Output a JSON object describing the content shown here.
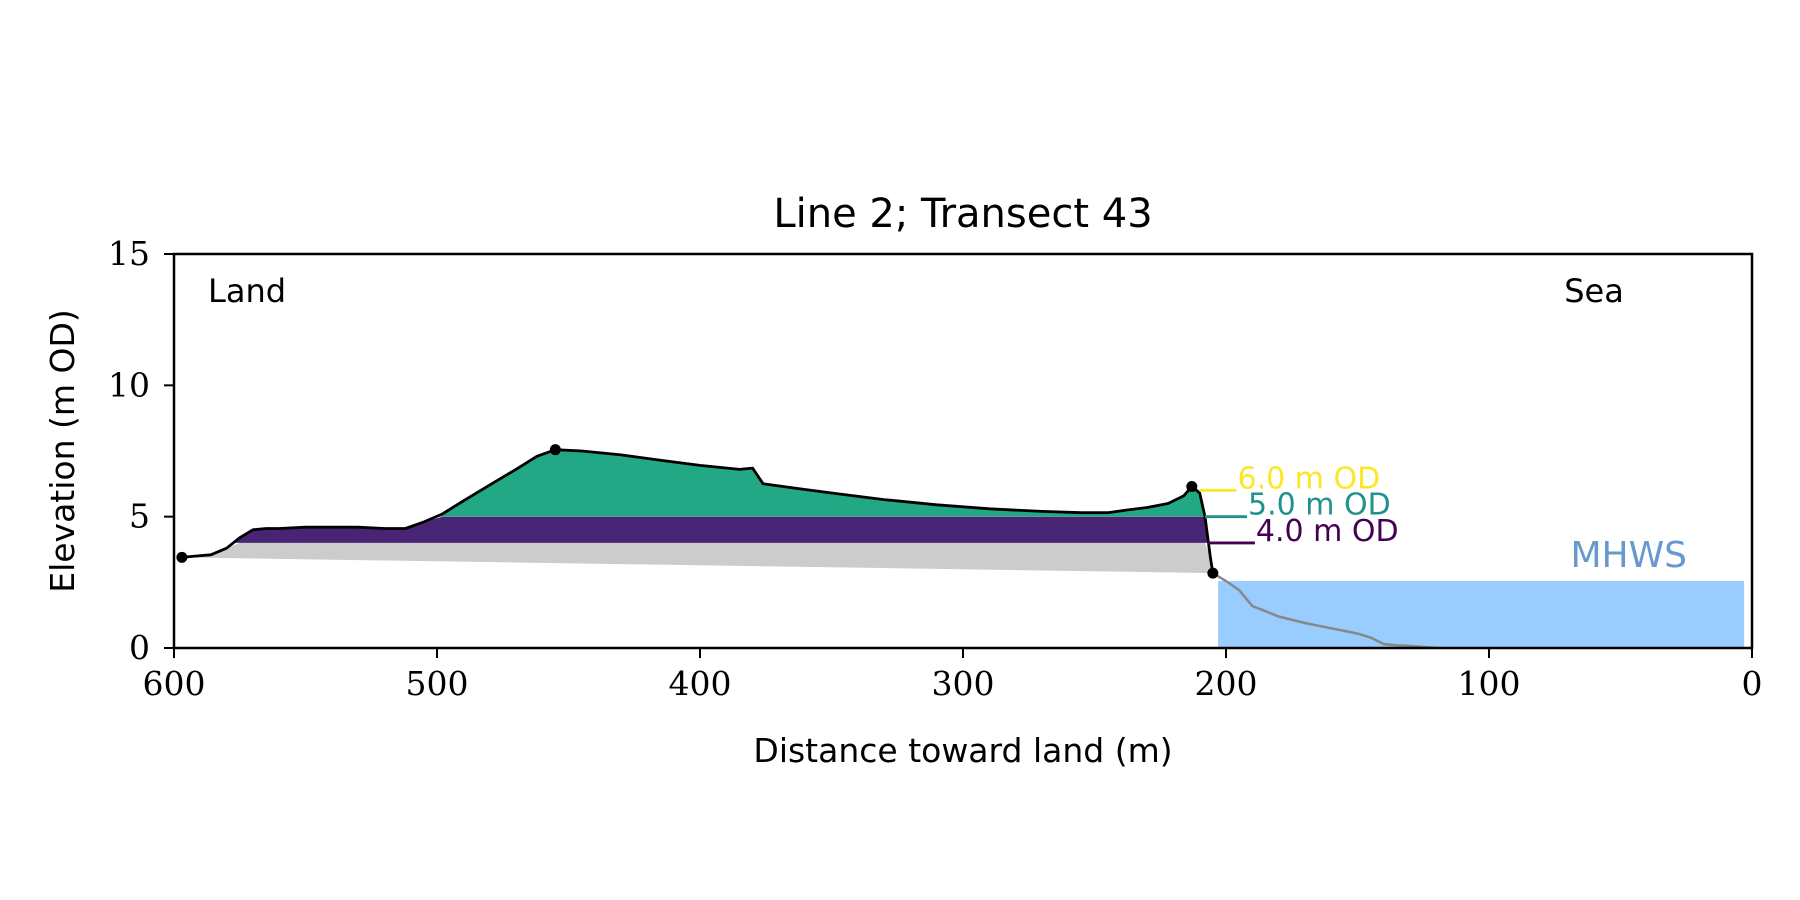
{
  "chart_data": {
    "type": "area",
    "title": "Line 2; Transect 43",
    "xlabel": "Distance toward land (m)",
    "ylabel": "Elevation (m OD)",
    "xlim": [
      600,
      0
    ],
    "ylim": [
      0,
      15
    ],
    "x_ticks": [
      600,
      500,
      400,
      300,
      200,
      100,
      0
    ],
    "y_ticks": [
      0,
      5,
      10,
      15
    ],
    "corner_labels": {
      "left": "Land",
      "right": "Sea"
    },
    "colors": {
      "dune_above_5": "#22a884",
      "band_4_to_5": "#482475",
      "base_wedge": "#cccccc",
      "sea": "#99ccff",
      "mhws_text": "#6699cc",
      "seabed_line": "#888888",
      "line_6": "#fde725",
      "line_5": "#21918c",
      "line_4": "#440154",
      "profile": "#000000"
    },
    "series": [
      {
        "name": "profile",
        "points": [
          [
            597,
            3.45
          ],
          [
            592,
            3.5
          ],
          [
            586,
            3.55
          ],
          [
            580,
            3.8
          ],
          [
            575,
            4.2
          ],
          [
            570,
            4.5
          ],
          [
            565,
            4.55
          ],
          [
            560,
            4.55
          ],
          [
            550,
            4.6
          ],
          [
            540,
            4.6
          ],
          [
            530,
            4.6
          ],
          [
            520,
            4.55
          ],
          [
            512,
            4.55
          ],
          [
            505,
            4.8
          ],
          [
            498,
            5.1
          ],
          [
            490,
            5.6
          ],
          [
            480,
            6.2
          ],
          [
            470,
            6.8
          ],
          [
            462,
            7.3
          ],
          [
            455,
            7.55
          ],
          [
            445,
            7.5
          ],
          [
            430,
            7.35
          ],
          [
            415,
            7.15
          ],
          [
            400,
            6.95
          ],
          [
            385,
            6.8
          ],
          [
            380,
            6.85
          ],
          [
            376,
            6.25
          ],
          [
            365,
            6.1
          ],
          [
            350,
            5.9
          ],
          [
            330,
            5.65
          ],
          [
            310,
            5.45
          ],
          [
            290,
            5.3
          ],
          [
            270,
            5.2
          ],
          [
            255,
            5.15
          ],
          [
            245,
            5.15
          ],
          [
            238,
            5.25
          ],
          [
            230,
            5.35
          ],
          [
            222,
            5.5
          ],
          [
            216,
            5.8
          ],
          [
            213,
            6.15
          ],
          [
            210,
            5.9
          ],
          [
            208,
            5.0
          ],
          [
            206,
            3.5
          ],
          [
            205,
            2.85
          ]
        ]
      },
      {
        "name": "seabed",
        "points": [
          [
            205,
            2.85
          ],
          [
            200,
            2.55
          ],
          [
            195,
            2.2
          ],
          [
            190,
            1.6
          ],
          [
            185,
            1.4
          ],
          [
            180,
            1.2
          ],
          [
            170,
            0.95
          ],
          [
            160,
            0.75
          ],
          [
            155,
            0.65
          ],
          [
            150,
            0.55
          ],
          [
            145,
            0.4
          ],
          [
            140,
            0.15
          ],
          [
            135,
            0.1
          ],
          [
            130,
            0.08
          ],
          [
            120,
            0.0
          ]
        ]
      },
      {
        "name": "base_wedge",
        "points": [
          [
            597,
            3.45
          ],
          [
            205,
            2.85
          ]
        ]
      }
    ],
    "markers": [
      [
        597,
        3.45
      ],
      [
        455,
        7.55
      ],
      [
        213,
        6.15
      ],
      [
        205,
        2.85
      ]
    ],
    "reference_lines": [
      {
        "level": 6.0,
        "label": "6.0 m OD",
        "x_from": 210,
        "x_to": 196
      },
      {
        "level": 5.0,
        "label": "5.0 m OD",
        "x_from": 208,
        "x_to": 192
      },
      {
        "level": 4.0,
        "label": "4.0 m OD",
        "x_from": 207,
        "x_to": 189
      }
    ],
    "mhws": {
      "label": "MHWS",
      "level": 2.55,
      "x_start": 203,
      "x_end": 3
    }
  }
}
